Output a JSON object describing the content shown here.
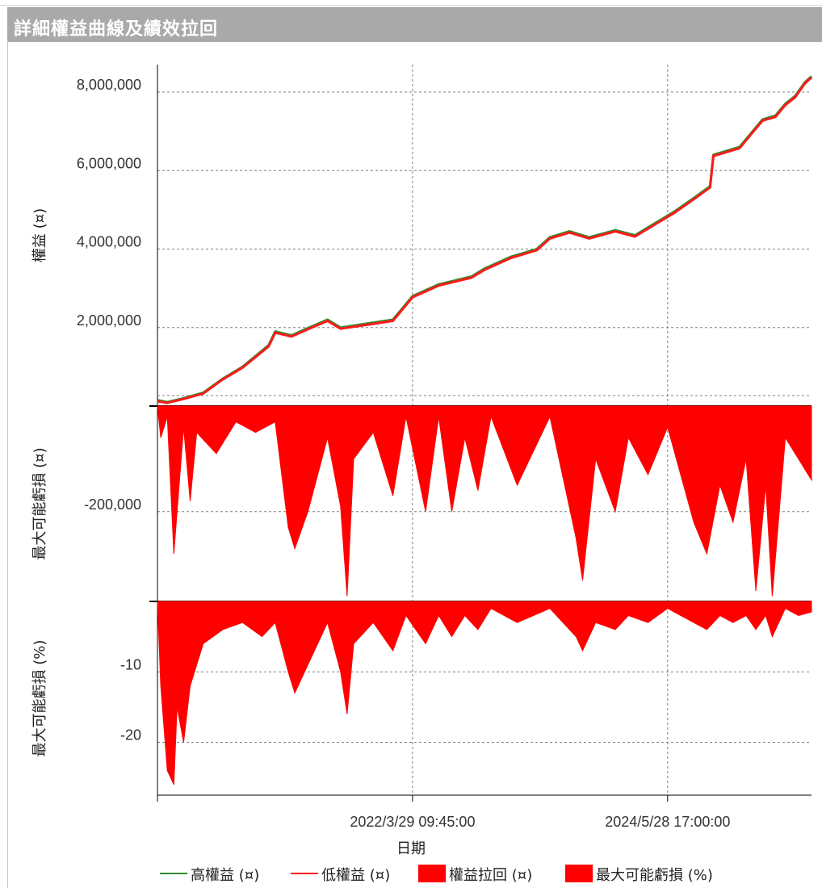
{
  "window": {
    "title": "詳細權益曲線及績效拉回"
  },
  "colors": {
    "high_equity": "#2e8b2e",
    "low_equity": "#ff1a1a",
    "fill": "#ff0000",
    "grid": "#808080",
    "axis": "#000000"
  },
  "chart_data": {
    "type": "area",
    "xlabel": "日期",
    "x_ticks": [
      "2022/3/29 09:45:00",
      "2024/5/28 17:00:00"
    ],
    "legend": [
      {
        "label": "高權益 (¤)",
        "kind": "line",
        "color": "#2e8b2e"
      },
      {
        "label": "低權益 (¤)",
        "kind": "line",
        "color": "#ff1a1a"
      },
      {
        "label": "權益拉回 (¤)",
        "kind": "box",
        "color": "#ff0000"
      },
      {
        "label": "最大可能虧損 (%)",
        "kind": "box",
        "color": "#ff0000"
      }
    ],
    "legend_position": "bottom",
    "grid": true,
    "x_range": [
      0,
      1
    ],
    "panels": [
      {
        "name": "equity",
        "ylabel": "權益 (¤)",
        "ylim": [
          0,
          8700000
        ],
        "yticks": [
          {
            "v": 2000000,
            "t": "2,000,000"
          },
          {
            "v": 4000000,
            "t": "4,000,000"
          },
          {
            "v": 6000000,
            "t": "6,000,000"
          },
          {
            "v": 8000000,
            "t": "8,000,000"
          }
        ],
        "series": [
          {
            "name": "高權益 (¤)",
            "points": [
              [
                0.0,
                150000
              ],
              [
                0.015,
                100000
              ],
              [
                0.04,
                200000
              ],
              [
                0.07,
                340000
              ],
              [
                0.1,
                700000
              ],
              [
                0.13,
                1000000
              ],
              [
                0.17,
                1550000
              ],
              [
                0.18,
                1900000
              ],
              [
                0.205,
                1800000
              ],
              [
                0.225,
                1950000
              ],
              [
                0.26,
                2200000
              ],
              [
                0.28,
                2000000
              ],
              [
                0.32,
                2100000
              ],
              [
                0.36,
                2200000
              ],
              [
                0.39,
                2800000
              ],
              [
                0.43,
                3100000
              ],
              [
                0.48,
                3300000
              ],
              [
                0.5,
                3500000
              ],
              [
                0.54,
                3800000
              ],
              [
                0.58,
                4000000
              ],
              [
                0.6,
                4300000
              ],
              [
                0.63,
                4450000
              ],
              [
                0.66,
                4300000
              ],
              [
                0.7,
                4480000
              ],
              [
                0.73,
                4350000
              ],
              [
                0.76,
                4650000
              ],
              [
                0.79,
                4950000
              ],
              [
                0.82,
                5300000
              ],
              [
                0.845,
                5600000
              ],
              [
                0.85,
                6400000
              ],
              [
                0.87,
                6500000
              ],
              [
                0.89,
                6600000
              ],
              [
                0.91,
                7000000
              ],
              [
                0.925,
                7300000
              ],
              [
                0.945,
                7400000
              ],
              [
                0.96,
                7700000
              ],
              [
                0.975,
                7900000
              ],
              [
                0.99,
                8250000
              ],
              [
                1.0,
                8400000
              ]
            ]
          },
          {
            "name": "低權益 (¤)",
            "points": [
              [
                0.0,
                120000
              ],
              [
                0.015,
                80000
              ],
              [
                0.04,
                180000
              ],
              [
                0.07,
                320000
              ],
              [
                0.1,
                680000
              ],
              [
                0.13,
                980000
              ],
              [
                0.17,
                1520000
              ],
              [
                0.18,
                1870000
              ],
              [
                0.205,
                1770000
              ],
              [
                0.225,
                1920000
              ],
              [
                0.26,
                2170000
              ],
              [
                0.28,
                1970000
              ],
              [
                0.32,
                2070000
              ],
              [
                0.36,
                2170000
              ],
              [
                0.39,
                2770000
              ],
              [
                0.43,
                3070000
              ],
              [
                0.48,
                3270000
              ],
              [
                0.5,
                3470000
              ],
              [
                0.54,
                3770000
              ],
              [
                0.58,
                3970000
              ],
              [
                0.6,
                4270000
              ],
              [
                0.63,
                4420000
              ],
              [
                0.66,
                4270000
              ],
              [
                0.7,
                4450000
              ],
              [
                0.73,
                4320000
              ],
              [
                0.76,
                4620000
              ],
              [
                0.79,
                4920000
              ],
              [
                0.82,
                5270000
              ],
              [
                0.845,
                5570000
              ],
              [
                0.85,
                6370000
              ],
              [
                0.87,
                6470000
              ],
              [
                0.89,
                6570000
              ],
              [
                0.91,
                6970000
              ],
              [
                0.925,
                7270000
              ],
              [
                0.945,
                7370000
              ],
              [
                0.96,
                7670000
              ],
              [
                0.975,
                7870000
              ],
              [
                0.99,
                8220000
              ],
              [
                1.0,
                8370000
              ]
            ]
          }
        ]
      },
      {
        "name": "drawdown_amount",
        "ylabel": "最大可能虧損 (¤)",
        "ylim": [
          -370000,
          0
        ],
        "yticks": [
          {
            "v": -200000,
            "t": "-200,000"
          }
        ],
        "series": [
          {
            "name": "權益拉回 (¤)",
            "points": [
              [
                0.0,
                0
              ],
              [
                0.005,
                -60000
              ],
              [
                0.015,
                -20000
              ],
              [
                0.025,
                -280000
              ],
              [
                0.03,
                -200000
              ],
              [
                0.04,
                -40000
              ],
              [
                0.05,
                -180000
              ],
              [
                0.06,
                -50000
              ],
              [
                0.09,
                -90000
              ],
              [
                0.12,
                -30000
              ],
              [
                0.15,
                -50000
              ],
              [
                0.18,
                -30000
              ],
              [
                0.2,
                -230000
              ],
              [
                0.21,
                -270000
              ],
              [
                0.23,
                -200000
              ],
              [
                0.26,
                -60000
              ],
              [
                0.28,
                -190000
              ],
              [
                0.29,
                -360000
              ],
              [
                0.3,
                -100000
              ],
              [
                0.33,
                -50000
              ],
              [
                0.36,
                -170000
              ],
              [
                0.38,
                -20000
              ],
              [
                0.41,
                -200000
              ],
              [
                0.43,
                -20000
              ],
              [
                0.45,
                -200000
              ],
              [
                0.47,
                -60000
              ],
              [
                0.49,
                -160000
              ],
              [
                0.51,
                -20000
              ],
              [
                0.55,
                -150000
              ],
              [
                0.6,
                -20000
              ],
              [
                0.64,
                -250000
              ],
              [
                0.65,
                -330000
              ],
              [
                0.67,
                -100000
              ],
              [
                0.7,
                -200000
              ],
              [
                0.72,
                -60000
              ],
              [
                0.75,
                -130000
              ],
              [
                0.78,
                -40000
              ],
              [
                0.82,
                -220000
              ],
              [
                0.84,
                -280000
              ],
              [
                0.86,
                -150000
              ],
              [
                0.88,
                -220000
              ],
              [
                0.9,
                -100000
              ],
              [
                0.915,
                -350000
              ],
              [
                0.93,
                -150000
              ],
              [
                0.94,
                -360000
              ],
              [
                0.96,
                -60000
              ],
              [
                0.98,
                -100000
              ],
              [
                1.0,
                -140000
              ]
            ]
          }
        ]
      },
      {
        "name": "drawdown_pct",
        "ylabel": "最大可能虧損 (%)",
        "ylim": [
          -27.5,
          0
        ],
        "yticks": [
          {
            "v": -10,
            "t": "-10"
          },
          {
            "v": -20,
            "t": "-20"
          }
        ],
        "series": [
          {
            "name": "最大可能虧損 (%)",
            "points": [
              [
                0.0,
                0
              ],
              [
                0.005,
                -12
              ],
              [
                0.015,
                -24
              ],
              [
                0.025,
                -26
              ],
              [
                0.03,
                -15
              ],
              [
                0.04,
                -20
              ],
              [
                0.05,
                -12
              ],
              [
                0.07,
                -6
              ],
              [
                0.1,
                -4
              ],
              [
                0.13,
                -3
              ],
              [
                0.16,
                -5
              ],
              [
                0.18,
                -3
              ],
              [
                0.2,
                -10
              ],
              [
                0.21,
                -13
              ],
              [
                0.23,
                -9
              ],
              [
                0.26,
                -3
              ],
              [
                0.28,
                -10
              ],
              [
                0.29,
                -16
              ],
              [
                0.3,
                -6
              ],
              [
                0.33,
                -3
              ],
              [
                0.36,
                -7
              ],
              [
                0.38,
                -2
              ],
              [
                0.41,
                -6
              ],
              [
                0.43,
                -2
              ],
              [
                0.45,
                -5
              ],
              [
                0.47,
                -2
              ],
              [
                0.49,
                -4
              ],
              [
                0.51,
                -1
              ],
              [
                0.55,
                -3
              ],
              [
                0.6,
                -1
              ],
              [
                0.64,
                -5
              ],
              [
                0.65,
                -7
              ],
              [
                0.67,
                -3
              ],
              [
                0.7,
                -4
              ],
              [
                0.72,
                -2
              ],
              [
                0.75,
                -3
              ],
              [
                0.78,
                -1
              ],
              [
                0.82,
                -3
              ],
              [
                0.84,
                -4
              ],
              [
                0.86,
                -2
              ],
              [
                0.88,
                -3
              ],
              [
                0.9,
                -2
              ],
              [
                0.915,
                -4
              ],
              [
                0.93,
                -2
              ],
              [
                0.94,
                -5
              ],
              [
                0.96,
                -1
              ],
              [
                0.98,
                -2
              ],
              [
                1.0,
                -1.5
              ]
            ]
          }
        ]
      }
    ]
  }
}
